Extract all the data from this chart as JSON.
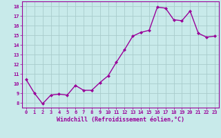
{
  "x": [
    0,
    1,
    2,
    3,
    4,
    5,
    6,
    7,
    8,
    9,
    10,
    11,
    12,
    13,
    14,
    15,
    16,
    17,
    18,
    19,
    20,
    21,
    22,
    23
  ],
  "y": [
    10.4,
    9.0,
    7.9,
    8.8,
    8.9,
    8.8,
    9.8,
    9.3,
    9.3,
    10.1,
    10.8,
    12.2,
    13.5,
    14.9,
    15.3,
    15.5,
    17.9,
    17.8,
    16.6,
    16.5,
    17.5,
    15.2,
    14.8,
    14.9
  ],
  "line_color": "#990099",
  "marker": "D",
  "marker_size": 2.0,
  "bg_color": "#c8eaea",
  "grid_color": "#a8cccc",
  "xlabel": "Windchill (Refroidissement éolien,°C)",
  "xlabel_color": "#990099",
  "tick_color": "#990099",
  "ylim": [
    7.5,
    18.5
  ],
  "xlim": [
    -0.5,
    23.5
  ],
  "yticks": [
    8,
    9,
    10,
    11,
    12,
    13,
    14,
    15,
    16,
    17,
    18
  ],
  "xticks": [
    0,
    1,
    2,
    3,
    4,
    5,
    6,
    7,
    8,
    9,
    10,
    11,
    12,
    13,
    14,
    15,
    16,
    17,
    18,
    19,
    20,
    21,
    22,
    23
  ],
  "tick_fontsize": 5.0,
  "xlabel_fontsize": 6.0,
  "linewidth": 1.0
}
